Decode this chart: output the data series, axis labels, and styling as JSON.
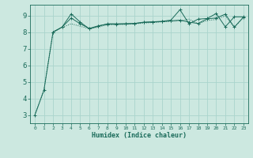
{
  "xlabel": "Humidex (Indice chaleur)",
  "background_color": "#cce8e0",
  "grid_color": "#aad4cc",
  "line_color": "#1a6b5a",
  "xlim": [
    -0.5,
    23.5
  ],
  "ylim": [
    2.5,
    9.65
  ],
  "yticks": [
    3,
    4,
    5,
    6,
    7,
    8,
    9
  ],
  "xticks": [
    0,
    1,
    2,
    3,
    4,
    5,
    6,
    7,
    8,
    9,
    10,
    11,
    12,
    13,
    14,
    15,
    16,
    17,
    18,
    19,
    20,
    21,
    22,
    23
  ],
  "line1_x": [
    0,
    1,
    2,
    3,
    4,
    5,
    6,
    7,
    8,
    9,
    10,
    11,
    12,
    13,
    14,
    15,
    16,
    17,
    18,
    19,
    20,
    21,
    22,
    23
  ],
  "line1_y": [
    3.0,
    4.5,
    8.0,
    8.3,
    9.1,
    8.6,
    8.2,
    8.35,
    8.5,
    8.5,
    8.5,
    8.52,
    8.6,
    8.62,
    8.65,
    8.72,
    9.35,
    8.5,
    8.78,
    8.82,
    9.12,
    8.32,
    8.92,
    8.92
  ],
  "line2_x": [
    2,
    3,
    4,
    5,
    6,
    7,
    8,
    9,
    10,
    11,
    12,
    13,
    14,
    15,
    16,
    17,
    18,
    19,
    20,
    21,
    22,
    23
  ],
  "line2_y": [
    8.0,
    8.3,
    8.85,
    8.5,
    8.22,
    8.38,
    8.48,
    8.48,
    8.5,
    8.52,
    8.58,
    8.6,
    8.63,
    8.68,
    8.72,
    8.6,
    8.52,
    8.8,
    8.85,
    9.08,
    8.3,
    8.9
  ],
  "line3_x": [
    0,
    1,
    2,
    3,
    4,
    5,
    6,
    7,
    8,
    9,
    10,
    11,
    12,
    13,
    14,
    15,
    16,
    17,
    18,
    19,
    20,
    21,
    22,
    23
  ],
  "line3_y": [
    3.0,
    4.5,
    8.0,
    8.28,
    8.5,
    8.35,
    8.2,
    8.3,
    8.44,
    8.44,
    8.46,
    8.5,
    8.54,
    8.58,
    8.62,
    8.64,
    8.68,
    8.78,
    8.5,
    8.7,
    8.76,
    8.98,
    8.28,
    8.88
  ]
}
